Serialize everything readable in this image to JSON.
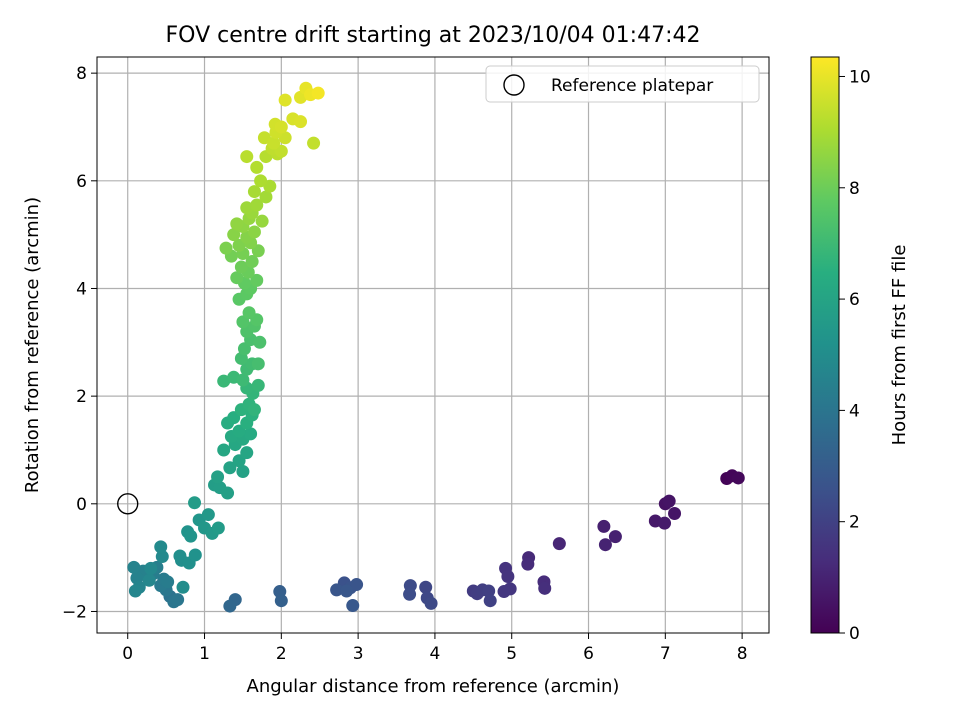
{
  "chart_data": {
    "type": "scatter",
    "title": "FOV centre drift starting at 2023/10/04 01:47:42",
    "xlabel": "Angular distance from reference (arcmin)",
    "ylabel": "Rotation from reference (arcmin)",
    "xlim": [
      -0.4,
      8.35
    ],
    "ylim": [
      -2.4,
      8.3
    ],
    "xticks": [
      0,
      1,
      2,
      3,
      4,
      5,
      6,
      7,
      8
    ],
    "yticks": [
      -2,
      0,
      2,
      4,
      6,
      8
    ],
    "grid": true,
    "legend": {
      "position": "top-right",
      "entries": [
        "Reference platepar"
      ]
    },
    "reference_point": {
      "x": 0,
      "y": 0,
      "label": "Reference platepar"
    },
    "colorbar": {
      "label": "Hours from first FF file",
      "colormap": "viridis",
      "range": [
        0,
        10.35
      ],
      "ticks": [
        0,
        2,
        4,
        6,
        8,
        10
      ]
    },
    "points": [
      {
        "x": 7.8,
        "y": 0.47,
        "c": 0.1
      },
      {
        "x": 7.87,
        "y": 0.52,
        "c": 0.15
      },
      {
        "x": 7.95,
        "y": 0.48,
        "c": 0.2
      },
      {
        "x": 7.0,
        "y": 0.0,
        "c": 0.5
      },
      {
        "x": 7.05,
        "y": 0.05,
        "c": 0.55
      },
      {
        "x": 7.12,
        "y": -0.18,
        "c": 0.6
      },
      {
        "x": 6.87,
        "y": -0.32,
        "c": 0.7
      },
      {
        "x": 6.99,
        "y": -0.36,
        "c": 0.75
      },
      {
        "x": 6.2,
        "y": -0.42,
        "c": 0.9
      },
      {
        "x": 6.35,
        "y": -0.61,
        "c": 0.95
      },
      {
        "x": 6.22,
        "y": -0.76,
        "c": 1.0
      },
      {
        "x": 5.62,
        "y": -0.74,
        "c": 1.1
      },
      {
        "x": 5.22,
        "y": -1.0,
        "c": 1.2
      },
      {
        "x": 5.21,
        "y": -1.12,
        "c": 1.25
      },
      {
        "x": 5.42,
        "y": -1.45,
        "c": 1.3
      },
      {
        "x": 5.43,
        "y": -1.57,
        "c": 1.35
      },
      {
        "x": 4.92,
        "y": -1.2,
        "c": 1.5
      },
      {
        "x": 4.95,
        "y": -1.35,
        "c": 1.55
      },
      {
        "x": 4.98,
        "y": -1.58,
        "c": 1.6
      },
      {
        "x": 4.9,
        "y": -1.63,
        "c": 1.65
      },
      {
        "x": 4.5,
        "y": -1.62,
        "c": 1.8
      },
      {
        "x": 4.55,
        "y": -1.67,
        "c": 1.85
      },
      {
        "x": 4.62,
        "y": -1.6,
        "c": 1.9
      },
      {
        "x": 4.7,
        "y": -1.62,
        "c": 1.95
      },
      {
        "x": 4.72,
        "y": -1.8,
        "c": 2.0
      },
      {
        "x": 3.88,
        "y": -1.55,
        "c": 2.2
      },
      {
        "x": 3.9,
        "y": -1.75,
        "c": 2.25
      },
      {
        "x": 3.95,
        "y": -1.85,
        "c": 2.3
      },
      {
        "x": 3.68,
        "y": -1.52,
        "c": 2.35
      },
      {
        "x": 3.67,
        "y": -1.68,
        "c": 2.4
      },
      {
        "x": 2.82,
        "y": -1.47,
        "c": 2.6
      },
      {
        "x": 2.9,
        "y": -1.56,
        "c": 2.65
      },
      {
        "x": 2.98,
        "y": -1.5,
        "c": 2.7
      },
      {
        "x": 2.72,
        "y": -1.6,
        "c": 2.75
      },
      {
        "x": 2.85,
        "y": -1.62,
        "c": 2.8
      },
      {
        "x": 2.93,
        "y": -1.89,
        "c": 2.85
      },
      {
        "x": 1.98,
        "y": -1.63,
        "c": 3.1
      },
      {
        "x": 2.0,
        "y": -1.8,
        "c": 3.15
      },
      {
        "x": 1.4,
        "y": -1.78,
        "c": 3.4
      },
      {
        "x": 1.33,
        "y": -1.9,
        "c": 3.45
      },
      {
        "x": 0.55,
        "y": -1.72,
        "c": 3.9
      },
      {
        "x": 0.6,
        "y": -1.82,
        "c": 4.0
      },
      {
        "x": 0.65,
        "y": -1.78,
        "c": 4.05
      },
      {
        "x": 0.5,
        "y": -1.6,
        "c": 4.1
      },
      {
        "x": 0.43,
        "y": -1.52,
        "c": 4.2
      },
      {
        "x": 0.47,
        "y": -1.4,
        "c": 4.25
      },
      {
        "x": 0.52,
        "y": -1.45,
        "c": 4.3
      },
      {
        "x": 0.33,
        "y": -1.3,
        "c": 4.35
      },
      {
        "x": 0.38,
        "y": -1.18,
        "c": 4.4
      },
      {
        "x": 0.25,
        "y": -1.32,
        "c": 4.45
      },
      {
        "x": 0.2,
        "y": -1.25,
        "c": 4.5
      },
      {
        "x": 0.12,
        "y": -1.38,
        "c": 4.55
      },
      {
        "x": 0.08,
        "y": -1.18,
        "c": 4.6
      },
      {
        "x": 0.15,
        "y": -1.55,
        "c": 4.65
      },
      {
        "x": 0.1,
        "y": -1.62,
        "c": 4.7
      },
      {
        "x": 0.28,
        "y": -1.42,
        "c": 4.75
      },
      {
        "x": 0.3,
        "y": -1.2,
        "c": 4.8
      },
      {
        "x": 0.45,
        "y": -0.98,
        "c": 4.85
      },
      {
        "x": 0.43,
        "y": -0.8,
        "c": 4.9
      },
      {
        "x": 0.72,
        "y": -1.55,
        "c": 5.0
      },
      {
        "x": 0.7,
        "y": -1.05,
        "c": 5.05
      },
      {
        "x": 0.68,
        "y": -0.97,
        "c": 5.1
      },
      {
        "x": 0.8,
        "y": -1.1,
        "c": 5.15
      },
      {
        "x": 0.88,
        "y": -0.95,
        "c": 5.2
      },
      {
        "x": 0.78,
        "y": -0.52,
        "c": 5.25
      },
      {
        "x": 0.82,
        "y": -0.6,
        "c": 5.3
      },
      {
        "x": 0.93,
        "y": -0.3,
        "c": 5.4
      },
      {
        "x": 1.0,
        "y": -0.45,
        "c": 5.45
      },
      {
        "x": 1.05,
        "y": -0.2,
        "c": 5.5
      },
      {
        "x": 1.1,
        "y": -0.55,
        "c": 5.55
      },
      {
        "x": 1.18,
        "y": -0.45,
        "c": 5.6
      },
      {
        "x": 0.87,
        "y": 0.02,
        "c": 5.65
      },
      {
        "x": 1.13,
        "y": 0.35,
        "c": 5.7
      },
      {
        "x": 1.2,
        "y": 0.3,
        "c": 5.75
      },
      {
        "x": 1.3,
        "y": 0.2,
        "c": 5.8
      },
      {
        "x": 1.17,
        "y": 0.5,
        "c": 5.85
      },
      {
        "x": 1.5,
        "y": 0.6,
        "c": 5.9
      },
      {
        "x": 1.33,
        "y": 0.67,
        "c": 5.95
      },
      {
        "x": 1.45,
        "y": 0.8,
        "c": 6.0
      },
      {
        "x": 1.55,
        "y": 0.95,
        "c": 6.05
      },
      {
        "x": 1.25,
        "y": 1.0,
        "c": 6.1
      },
      {
        "x": 1.4,
        "y": 1.1,
        "c": 6.15
      },
      {
        "x": 1.5,
        "y": 1.2,
        "c": 6.2
      },
      {
        "x": 1.35,
        "y": 1.25,
        "c": 6.25
      },
      {
        "x": 1.6,
        "y": 1.3,
        "c": 6.3
      },
      {
        "x": 1.45,
        "y": 1.35,
        "c": 6.35
      },
      {
        "x": 1.3,
        "y": 1.5,
        "c": 6.4
      },
      {
        "x": 1.38,
        "y": 1.6,
        "c": 6.45
      },
      {
        "x": 1.55,
        "y": 1.5,
        "c": 6.5
      },
      {
        "x": 1.62,
        "y": 1.65,
        "c": 6.55
      },
      {
        "x": 1.48,
        "y": 1.75,
        "c": 6.6
      },
      {
        "x": 1.58,
        "y": 1.85,
        "c": 6.65
      },
      {
        "x": 1.65,
        "y": 1.75,
        "c": 6.7
      },
      {
        "x": 1.63,
        "y": 2.05,
        "c": 6.75
      },
      {
        "x": 1.55,
        "y": 2.15,
        "c": 6.8
      },
      {
        "x": 1.7,
        "y": 2.2,
        "c": 6.85
      },
      {
        "x": 1.25,
        "y": 2.28,
        "c": 6.9
      },
      {
        "x": 1.38,
        "y": 2.35,
        "c": 6.95
      },
      {
        "x": 1.5,
        "y": 2.3,
        "c": 7.0
      },
      {
        "x": 1.55,
        "y": 2.5,
        "c": 7.05
      },
      {
        "x": 1.62,
        "y": 2.6,
        "c": 7.1
      },
      {
        "x": 1.48,
        "y": 2.7,
        "c": 7.15
      },
      {
        "x": 1.7,
        "y": 2.6,
        "c": 7.2
      },
      {
        "x": 1.52,
        "y": 2.88,
        "c": 7.25
      },
      {
        "x": 1.6,
        "y": 3.05,
        "c": 7.3
      },
      {
        "x": 1.72,
        "y": 3.0,
        "c": 7.35
      },
      {
        "x": 1.55,
        "y": 3.2,
        "c": 7.4
      },
      {
        "x": 1.65,
        "y": 3.3,
        "c": 7.45
      },
      {
        "x": 1.5,
        "y": 3.38,
        "c": 7.5
      },
      {
        "x": 1.68,
        "y": 3.42,
        "c": 7.55
      },
      {
        "x": 1.58,
        "y": 3.55,
        "c": 7.6
      },
      {
        "x": 1.45,
        "y": 3.8,
        "c": 7.65
      },
      {
        "x": 1.55,
        "y": 3.9,
        "c": 7.7
      },
      {
        "x": 1.6,
        "y": 4.0,
        "c": 7.75
      },
      {
        "x": 1.52,
        "y": 4.1,
        "c": 7.8
      },
      {
        "x": 1.68,
        "y": 4.15,
        "c": 7.85
      },
      {
        "x": 1.42,
        "y": 4.2,
        "c": 7.9
      },
      {
        "x": 1.57,
        "y": 4.3,
        "c": 7.95
      },
      {
        "x": 1.48,
        "y": 4.4,
        "c": 8.0
      },
      {
        "x": 1.62,
        "y": 4.5,
        "c": 8.05
      },
      {
        "x": 1.35,
        "y": 4.6,
        "c": 8.1
      },
      {
        "x": 1.5,
        "y": 4.65,
        "c": 8.15
      },
      {
        "x": 1.7,
        "y": 4.7,
        "c": 8.2
      },
      {
        "x": 1.28,
        "y": 4.75,
        "c": 8.25
      },
      {
        "x": 1.45,
        "y": 4.8,
        "c": 8.3
      },
      {
        "x": 1.6,
        "y": 4.85,
        "c": 8.35
      },
      {
        "x": 1.55,
        "y": 4.95,
        "c": 8.4
      },
      {
        "x": 1.38,
        "y": 5.0,
        "c": 8.45
      },
      {
        "x": 1.65,
        "y": 5.05,
        "c": 8.5
      },
      {
        "x": 1.5,
        "y": 5.15,
        "c": 8.55
      },
      {
        "x": 1.42,
        "y": 5.2,
        "c": 8.6
      },
      {
        "x": 1.58,
        "y": 5.3,
        "c": 8.65
      },
      {
        "x": 1.75,
        "y": 5.25,
        "c": 8.7
      },
      {
        "x": 1.62,
        "y": 5.4,
        "c": 8.75
      },
      {
        "x": 1.55,
        "y": 5.5,
        "c": 8.8
      },
      {
        "x": 1.68,
        "y": 5.55,
        "c": 8.85
      },
      {
        "x": 1.8,
        "y": 5.7,
        "c": 8.9
      },
      {
        "x": 1.65,
        "y": 5.8,
        "c": 8.95
      },
      {
        "x": 1.85,
        "y": 5.9,
        "c": 9.0
      },
      {
        "x": 1.73,
        "y": 6.0,
        "c": 9.05
      },
      {
        "x": 1.68,
        "y": 6.25,
        "c": 9.15
      },
      {
        "x": 1.8,
        "y": 6.45,
        "c": 9.2
      },
      {
        "x": 1.55,
        "y": 6.45,
        "c": 9.25
      },
      {
        "x": 1.95,
        "y": 6.5,
        "c": 9.3
      },
      {
        "x": 1.88,
        "y": 6.6,
        "c": 9.35
      },
      {
        "x": 2.0,
        "y": 6.55,
        "c": 9.4
      },
      {
        "x": 1.78,
        "y": 6.8,
        "c": 9.45
      },
      {
        "x": 1.9,
        "y": 6.7,
        "c": 9.5
      },
      {
        "x": 2.05,
        "y": 6.8,
        "c": 9.55
      },
      {
        "x": 1.93,
        "y": 6.9,
        "c": 9.6
      },
      {
        "x": 1.92,
        "y": 7.05,
        "c": 9.65
      },
      {
        "x": 2.0,
        "y": 7.0,
        "c": 9.7
      },
      {
        "x": 2.15,
        "y": 7.15,
        "c": 9.75
      },
      {
        "x": 2.25,
        "y": 7.1,
        "c": 9.8
      },
      {
        "x": 2.05,
        "y": 7.5,
        "c": 9.85
      },
      {
        "x": 2.25,
        "y": 7.55,
        "c": 9.9
      },
      {
        "x": 2.32,
        "y": 7.72,
        "c": 10.0
      },
      {
        "x": 2.38,
        "y": 7.6,
        "c": 10.1
      },
      {
        "x": 2.48,
        "y": 7.63,
        "c": 10.2
      },
      {
        "x": 2.42,
        "y": 6.7,
        "c": 9.4
      }
    ]
  }
}
